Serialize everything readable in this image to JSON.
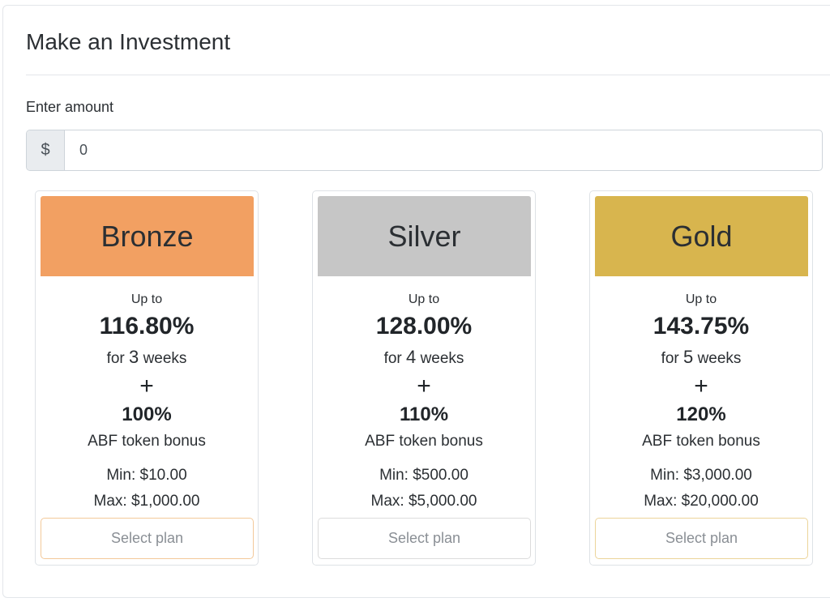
{
  "panel": {
    "title": "Make an Investment",
    "amount_label": "Enter amount",
    "currency_symbol": "$",
    "amount_value": "0"
  },
  "plans": [
    {
      "name": "Bronze",
      "header_color": "#f2a062",
      "button_border": "#f3c99a",
      "up_to_label": "Up to",
      "return_pct": "116.80%",
      "for_label": "for",
      "weeks_count": "3",
      "weeks_label": "weeks",
      "plus": "+",
      "bonus_pct": "100%",
      "bonus_label": "ABF token bonus",
      "min": "Min: $10.00",
      "max": "Max: $1,000.00",
      "button_label": "Select plan"
    },
    {
      "name": "Silver",
      "header_color": "#c6c6c6",
      "button_border": "#dcdcdc",
      "up_to_label": "Up to",
      "return_pct": "128.00%",
      "for_label": "for",
      "weeks_count": "4",
      "weeks_label": "weeks",
      "plus": "+",
      "bonus_pct": "110%",
      "bonus_label": "ABF token bonus",
      "min": "Min: $500.00",
      "max": "Max: $5,000.00",
      "button_label": "Select plan"
    },
    {
      "name": "Gold",
      "header_color": "#d8b54e",
      "button_border": "#ecd49a",
      "up_to_label": "Up to",
      "return_pct": "143.75%",
      "for_label": "for",
      "weeks_count": "5",
      "weeks_label": "weeks",
      "plus": "+",
      "bonus_pct": "120%",
      "bonus_label": "ABF token bonus",
      "min": "Min: $3,000.00",
      "max": "Max: $20,000.00",
      "button_label": "Select plan"
    }
  ]
}
